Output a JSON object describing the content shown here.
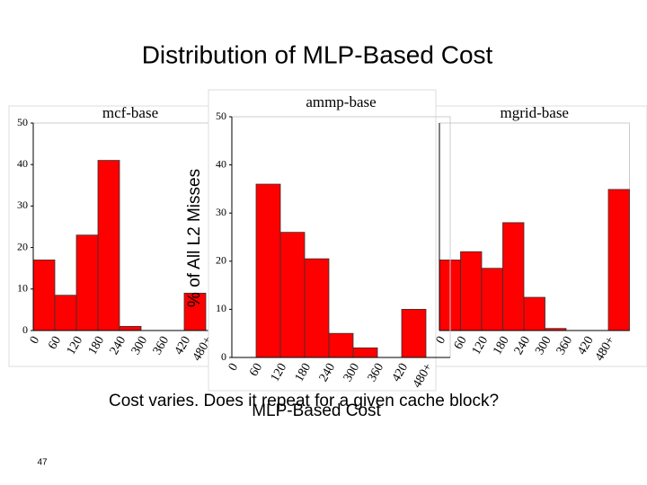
{
  "title": "Distribution of MLP-Based Cost",
  "ylabel": "% of All L2 Misses",
  "xlabel": "MLP-Based Cost",
  "caption": "Cost varies. Does it repeat for a given cache block?",
  "page_number": "47",
  "chart_data": [
    {
      "type": "bar",
      "title": "mcf-base",
      "color": "#ff0000",
      "categories": [
        "0",
        "60",
        "120",
        "180",
        "240",
        "300",
        "360",
        "420",
        "480+"
      ],
      "values": [
        17,
        8.5,
        23,
        41,
        1,
        0,
        0,
        9,
        0
      ],
      "ylim": [
        0,
        50
      ],
      "yticks": [
        0,
        10,
        20,
        30,
        40,
        50
      ]
    },
    {
      "type": "bar",
      "title": "mgrid-base",
      "color": "#ff0000",
      "categories": [
        "0",
        "60",
        "120",
        "180",
        "240",
        "300",
        "360",
        "420",
        "480+"
      ],
      "values": [
        17,
        19,
        15,
        26,
        8,
        0.5,
        0,
        0,
        34
      ],
      "ylim": [
        0,
        50
      ]
    },
    {
      "type": "bar",
      "title": "ammp-base",
      "color": "#ff0000",
      "categories": [
        "0",
        "60",
        "120",
        "180",
        "240",
        "300",
        "360",
        "420",
        "480+"
      ],
      "values": [
        0,
        36,
        26,
        20.5,
        5,
        2,
        0,
        10,
        0
      ],
      "ylim": [
        0,
        50
      ],
      "yticks": [
        0,
        10,
        20,
        30,
        40,
        50
      ]
    }
  ]
}
